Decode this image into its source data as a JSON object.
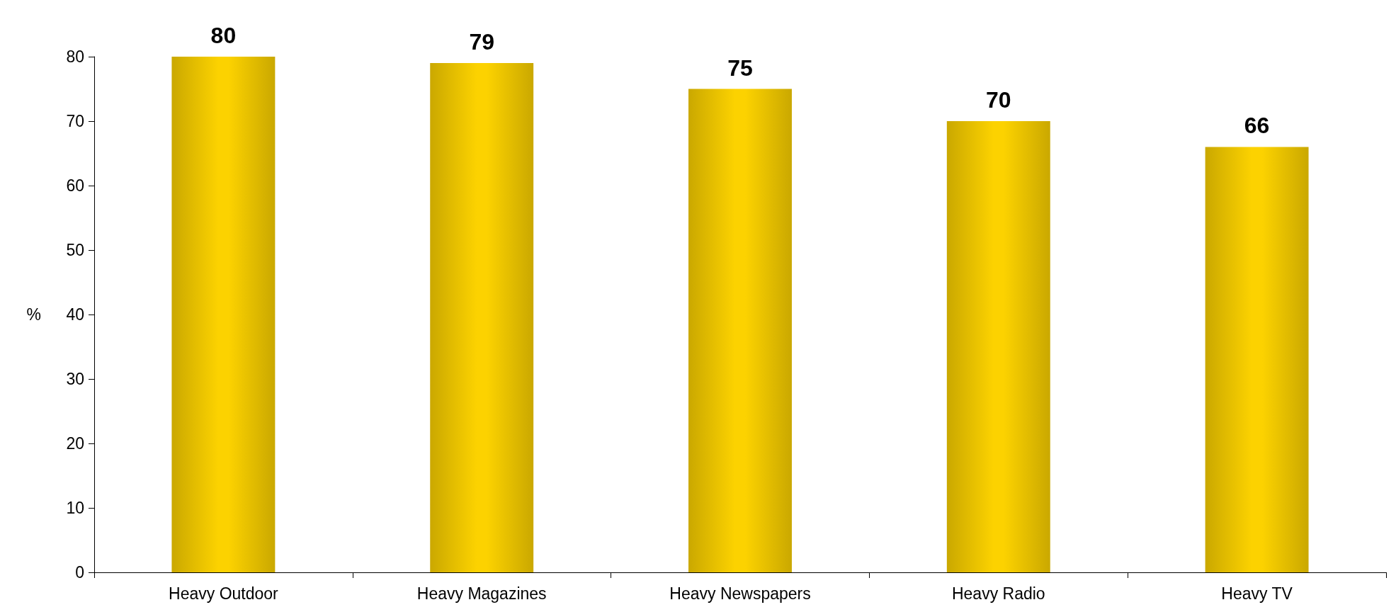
{
  "chart_data": {
    "type": "bar",
    "ylabel": "%",
    "categories": [
      "Heavy Outdoor",
      "Heavy Magazines",
      "Heavy Newspapers",
      "Heavy Radio",
      "Heavy TV"
    ],
    "values": [
      80,
      79,
      75,
      70,
      66
    ],
    "color": "#fcd200",
    "ylim": [
      0,
      80
    ],
    "yticks": [
      0,
      10,
      20,
      30,
      40,
      50,
      60,
      70,
      80
    ],
    "grid": false,
    "data_labels": true
  }
}
